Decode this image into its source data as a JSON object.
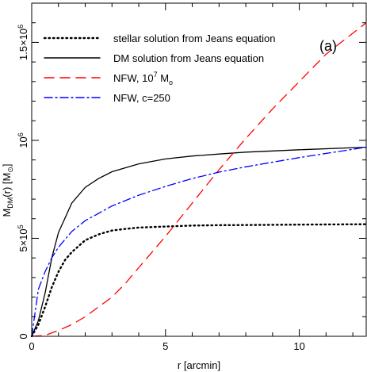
{
  "chart_data": {
    "type": "line",
    "title": "",
    "panel_label": "(a)",
    "xlabel": "r [arcmin]",
    "ylabel_parts": {
      "main": "M",
      "main_sub": "DM",
      "paren": "(r) [M",
      "unit_sub": "⊙",
      "close": "]"
    },
    "xlim": [
      0,
      12.5
    ],
    "ylim": [
      0,
      1700000
    ],
    "x_ticks": [
      {
        "value": 0,
        "label": "0"
      },
      {
        "value": 5,
        "label": "5"
      },
      {
        "value": 10,
        "label": "10"
      }
    ],
    "y_ticks": [
      {
        "value": 0,
        "label": "0",
        "base": "0",
        "exp": ""
      },
      {
        "value": 500000,
        "label": "5×10⁵",
        "base": "5×10",
        "exp": "5"
      },
      {
        "value": 1000000,
        "label": "10⁶",
        "base": "10",
        "exp": "6"
      },
      {
        "value": 1500000,
        "label": "1.5×10⁶",
        "base": "1.5×10",
        "exp": "6"
      }
    ],
    "grid": false,
    "legend_position": "top-left",
    "series": [
      {
        "name": "stellar solution from Jeans equation",
        "color": "#000000",
        "style": "dotted",
        "x": [
          0,
          0.25,
          0.5,
          0.75,
          1,
          1.25,
          1.5,
          2,
          2.5,
          3,
          3.5,
          4,
          5,
          6,
          7,
          8,
          10,
          12.5
        ],
        "y": [
          0,
          60000,
          150000,
          250000,
          330000,
          390000,
          430000,
          490000,
          520000,
          540000,
          548000,
          555000,
          560000,
          565000,
          567000,
          568000,
          570000,
          572000
        ]
      },
      {
        "name": "DM solution from Jeans equation",
        "color": "#000000",
        "style": "solid",
        "x": [
          0,
          0.25,
          0.5,
          0.75,
          1,
          1.5,
          2,
          2.5,
          3,
          4,
          5,
          6,
          7,
          8,
          10,
          12.5
        ],
        "y": [
          0,
          80000,
          220000,
          400000,
          530000,
          680000,
          760000,
          805000,
          840000,
          880000,
          905000,
          920000,
          930000,
          940000,
          952000,
          965000
        ]
      },
      {
        "name_parts": {
          "text": "NFW, 10",
          "sup": "7",
          "after": " M",
          "sub": "o"
        },
        "name": "NFW, 10⁷ M₀",
        "color": "#ff0000",
        "style": "dashed",
        "x": [
          0,
          0.5,
          1,
          1.5,
          2,
          2.5,
          3,
          3.5,
          4,
          5,
          6,
          7,
          8,
          9,
          10,
          11,
          12.5
        ],
        "y": [
          0,
          5000,
          30000,
          60000,
          100000,
          150000,
          200000,
          270000,
          350000,
          510000,
          680000,
          850000,
          1010000,
          1160000,
          1300000,
          1440000,
          1600000
        ]
      },
      {
        "name": "NFW, c=250",
        "color": "#0000ff",
        "style": "dashdot",
        "x": [
          0,
          0.25,
          0.5,
          0.75,
          1,
          1.5,
          2,
          3,
          4,
          5,
          6,
          7,
          8,
          10,
          12.5
        ],
        "y": [
          0,
          240000,
          330000,
          400000,
          455000,
          535000,
          590000,
          665000,
          720000,
          765000,
          805000,
          838000,
          865000,
          912000,
          965000
        ]
      }
    ]
  }
}
